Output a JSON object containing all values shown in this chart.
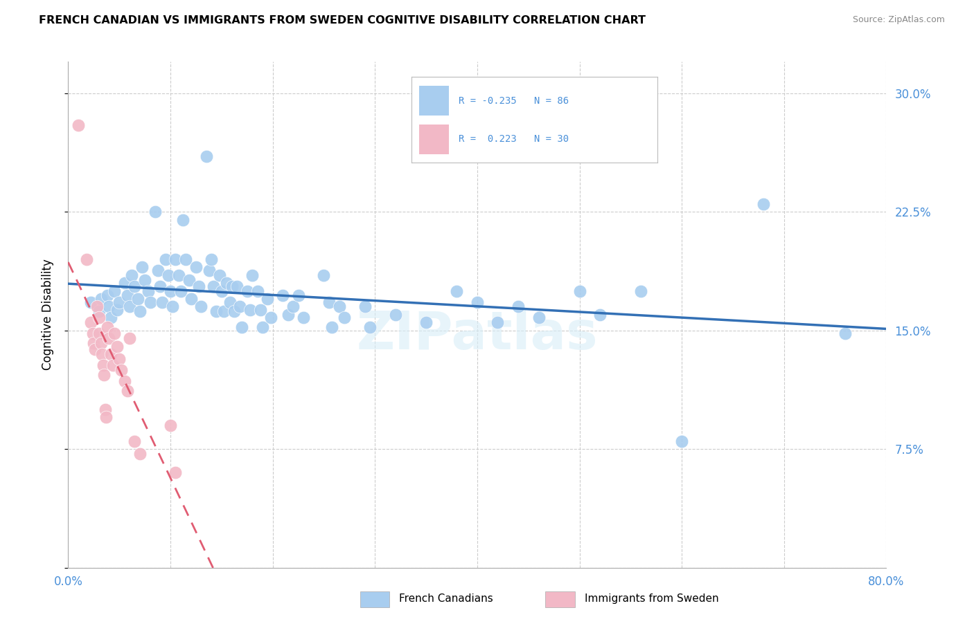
{
  "title": "FRENCH CANADIAN VS IMMIGRANTS FROM SWEDEN COGNITIVE DISABILITY CORRELATION CHART",
  "source": "Source: ZipAtlas.com",
  "ylabel": "Cognitive Disability",
  "xlim": [
    0.0,
    0.8
  ],
  "ylim": [
    0.0,
    0.32
  ],
  "xticks": [
    0.0,
    0.1,
    0.2,
    0.3,
    0.4,
    0.5,
    0.6,
    0.7,
    0.8
  ],
  "yticks": [
    0.0,
    0.075,
    0.15,
    0.225,
    0.3
  ],
  "ytick_labels": [
    "",
    "7.5%",
    "15.0%",
    "22.5%",
    "30.0%"
  ],
  "legend_r1": "-0.235",
  "legend_n1": "86",
  "legend_r2": "0.223",
  "legend_n2": "30",
  "blue_fill": "#A8CDEF",
  "pink_fill": "#F2B8C6",
  "blue_line": "#3370B5",
  "pink_line": "#E05C72",
  "tick_color": "#4A90D9",
  "grid_color": "#CCCCCC",
  "blue_scatter": [
    [
      0.022,
      0.168
    ],
    [
      0.03,
      0.162
    ],
    [
      0.032,
      0.17
    ],
    [
      0.038,
      0.172
    ],
    [
      0.04,
      0.165
    ],
    [
      0.042,
      0.158
    ],
    [
      0.045,
      0.175
    ],
    [
      0.048,
      0.163
    ],
    [
      0.05,
      0.168
    ],
    [
      0.055,
      0.18
    ],
    [
      0.058,
      0.172
    ],
    [
      0.06,
      0.165
    ],
    [
      0.062,
      0.185
    ],
    [
      0.065,
      0.178
    ],
    [
      0.068,
      0.17
    ],
    [
      0.07,
      0.162
    ],
    [
      0.072,
      0.19
    ],
    [
      0.075,
      0.182
    ],
    [
      0.078,
      0.175
    ],
    [
      0.08,
      0.168
    ],
    [
      0.085,
      0.225
    ],
    [
      0.088,
      0.188
    ],
    [
      0.09,
      0.178
    ],
    [
      0.092,
      0.168
    ],
    [
      0.095,
      0.195
    ],
    [
      0.098,
      0.185
    ],
    [
      0.1,
      0.175
    ],
    [
      0.102,
      0.165
    ],
    [
      0.105,
      0.195
    ],
    [
      0.108,
      0.185
    ],
    [
      0.11,
      0.175
    ],
    [
      0.112,
      0.22
    ],
    [
      0.115,
      0.195
    ],
    [
      0.118,
      0.182
    ],
    [
      0.12,
      0.17
    ],
    [
      0.125,
      0.19
    ],
    [
      0.128,
      0.178
    ],
    [
      0.13,
      0.165
    ],
    [
      0.135,
      0.26
    ],
    [
      0.138,
      0.188
    ],
    [
      0.14,
      0.195
    ],
    [
      0.142,
      0.178
    ],
    [
      0.145,
      0.162
    ],
    [
      0.148,
      0.185
    ],
    [
      0.15,
      0.175
    ],
    [
      0.152,
      0.162
    ],
    [
      0.155,
      0.18
    ],
    [
      0.158,
      0.168
    ],
    [
      0.16,
      0.178
    ],
    [
      0.162,
      0.162
    ],
    [
      0.165,
      0.178
    ],
    [
      0.168,
      0.165
    ],
    [
      0.17,
      0.152
    ],
    [
      0.175,
      0.175
    ],
    [
      0.178,
      0.163
    ],
    [
      0.18,
      0.185
    ],
    [
      0.185,
      0.175
    ],
    [
      0.188,
      0.163
    ],
    [
      0.19,
      0.152
    ],
    [
      0.195,
      0.17
    ],
    [
      0.198,
      0.158
    ],
    [
      0.21,
      0.172
    ],
    [
      0.215,
      0.16
    ],
    [
      0.22,
      0.165
    ],
    [
      0.225,
      0.172
    ],
    [
      0.23,
      0.158
    ],
    [
      0.25,
      0.185
    ],
    [
      0.255,
      0.168
    ],
    [
      0.258,
      0.152
    ],
    [
      0.265,
      0.165
    ],
    [
      0.27,
      0.158
    ],
    [
      0.29,
      0.165
    ],
    [
      0.295,
      0.152
    ],
    [
      0.32,
      0.16
    ],
    [
      0.35,
      0.155
    ],
    [
      0.38,
      0.175
    ],
    [
      0.4,
      0.168
    ],
    [
      0.42,
      0.155
    ],
    [
      0.44,
      0.165
    ],
    [
      0.46,
      0.158
    ],
    [
      0.5,
      0.175
    ],
    [
      0.52,
      0.16
    ],
    [
      0.56,
      0.175
    ],
    [
      0.6,
      0.08
    ],
    [
      0.68,
      0.23
    ],
    [
      0.76,
      0.148
    ]
  ],
  "pink_scatter": [
    [
      0.01,
      0.28
    ],
    [
      0.018,
      0.195
    ],
    [
      0.022,
      0.155
    ],
    [
      0.024,
      0.148
    ],
    [
      0.025,
      0.142
    ],
    [
      0.026,
      0.138
    ],
    [
      0.028,
      0.165
    ],
    [
      0.03,
      0.158
    ],
    [
      0.03,
      0.148
    ],
    [
      0.032,
      0.142
    ],
    [
      0.033,
      0.135
    ],
    [
      0.034,
      0.128
    ],
    [
      0.035,
      0.122
    ],
    [
      0.036,
      0.1
    ],
    [
      0.037,
      0.095
    ],
    [
      0.038,
      0.152
    ],
    [
      0.04,
      0.145
    ],
    [
      0.042,
      0.135
    ],
    [
      0.044,
      0.128
    ],
    [
      0.045,
      0.148
    ],
    [
      0.048,
      0.14
    ],
    [
      0.05,
      0.132
    ],
    [
      0.052,
      0.125
    ],
    [
      0.055,
      0.118
    ],
    [
      0.058,
      0.112
    ],
    [
      0.06,
      0.145
    ],
    [
      0.065,
      0.08
    ],
    [
      0.07,
      0.072
    ],
    [
      0.1,
      0.09
    ],
    [
      0.105,
      0.06
    ]
  ]
}
